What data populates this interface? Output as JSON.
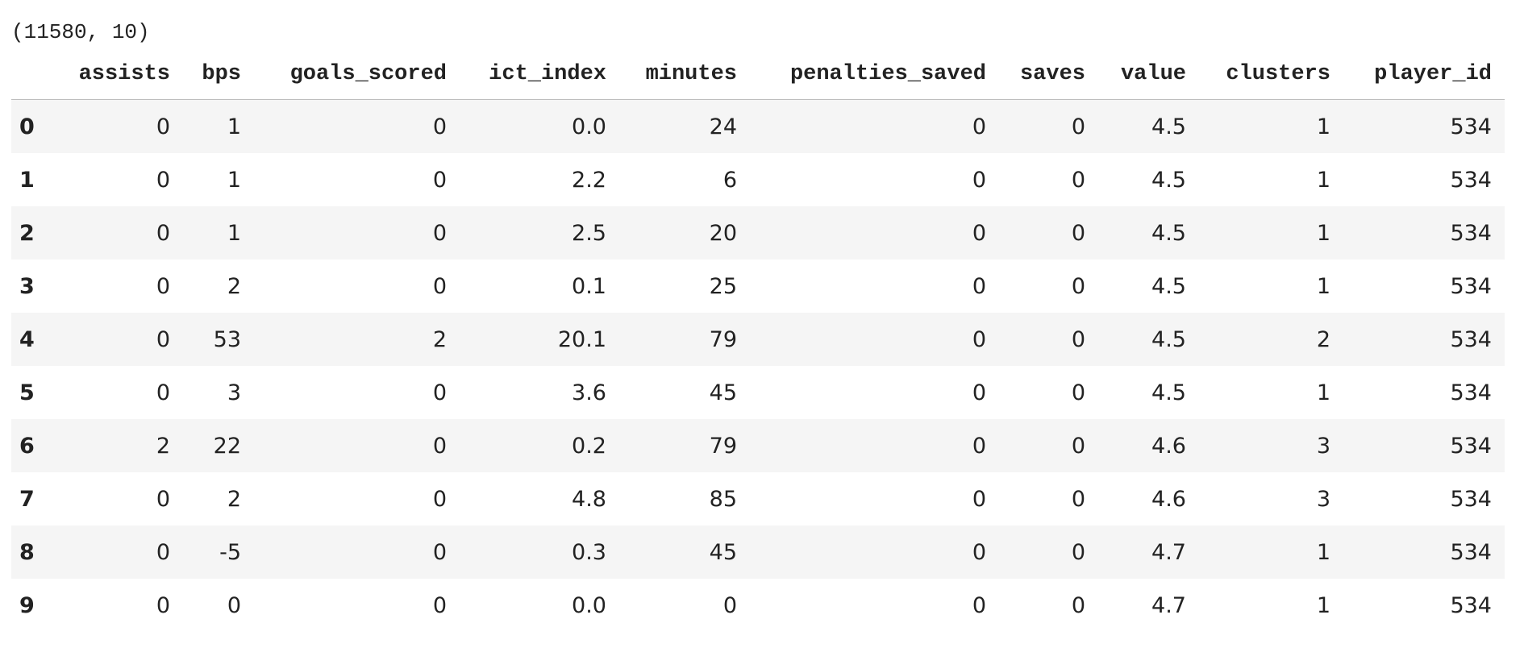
{
  "shape": "(11580, 10)",
  "table": {
    "columns": [
      "assists",
      "bps",
      "goals_scored",
      "ict_index",
      "minutes",
      "penalties_saved",
      "saves",
      "value",
      "clusters",
      "player_id"
    ],
    "index": [
      "0",
      "1",
      "2",
      "3",
      "4",
      "5",
      "6",
      "7",
      "8",
      "9"
    ],
    "rows": [
      [
        "0",
        "1",
        "0",
        "0.0",
        "24",
        "0",
        "0",
        "4.5",
        "1",
        "534"
      ],
      [
        "0",
        "1",
        "0",
        "2.2",
        "6",
        "0",
        "0",
        "4.5",
        "1",
        "534"
      ],
      [
        "0",
        "1",
        "0",
        "2.5",
        "20",
        "0",
        "0",
        "4.5",
        "1",
        "534"
      ],
      [
        "0",
        "2",
        "0",
        "0.1",
        "25",
        "0",
        "0",
        "4.5",
        "1",
        "534"
      ],
      [
        "0",
        "53",
        "2",
        "20.1",
        "79",
        "0",
        "0",
        "4.5",
        "2",
        "534"
      ],
      [
        "0",
        "3",
        "0",
        "3.6",
        "45",
        "0",
        "0",
        "4.5",
        "1",
        "534"
      ],
      [
        "2",
        "22",
        "0",
        "0.2",
        "79",
        "0",
        "0",
        "4.6",
        "3",
        "534"
      ],
      [
        "0",
        "2",
        "0",
        "4.8",
        "85",
        "0",
        "0",
        "4.6",
        "3",
        "534"
      ],
      [
        "0",
        "-5",
        "0",
        "0.3",
        "45",
        "0",
        "0",
        "4.7",
        "1",
        "534"
      ],
      [
        "0",
        "0",
        "0",
        "0.0",
        "0",
        "0",
        "0",
        "4.7",
        "1",
        "534"
      ]
    ]
  }
}
